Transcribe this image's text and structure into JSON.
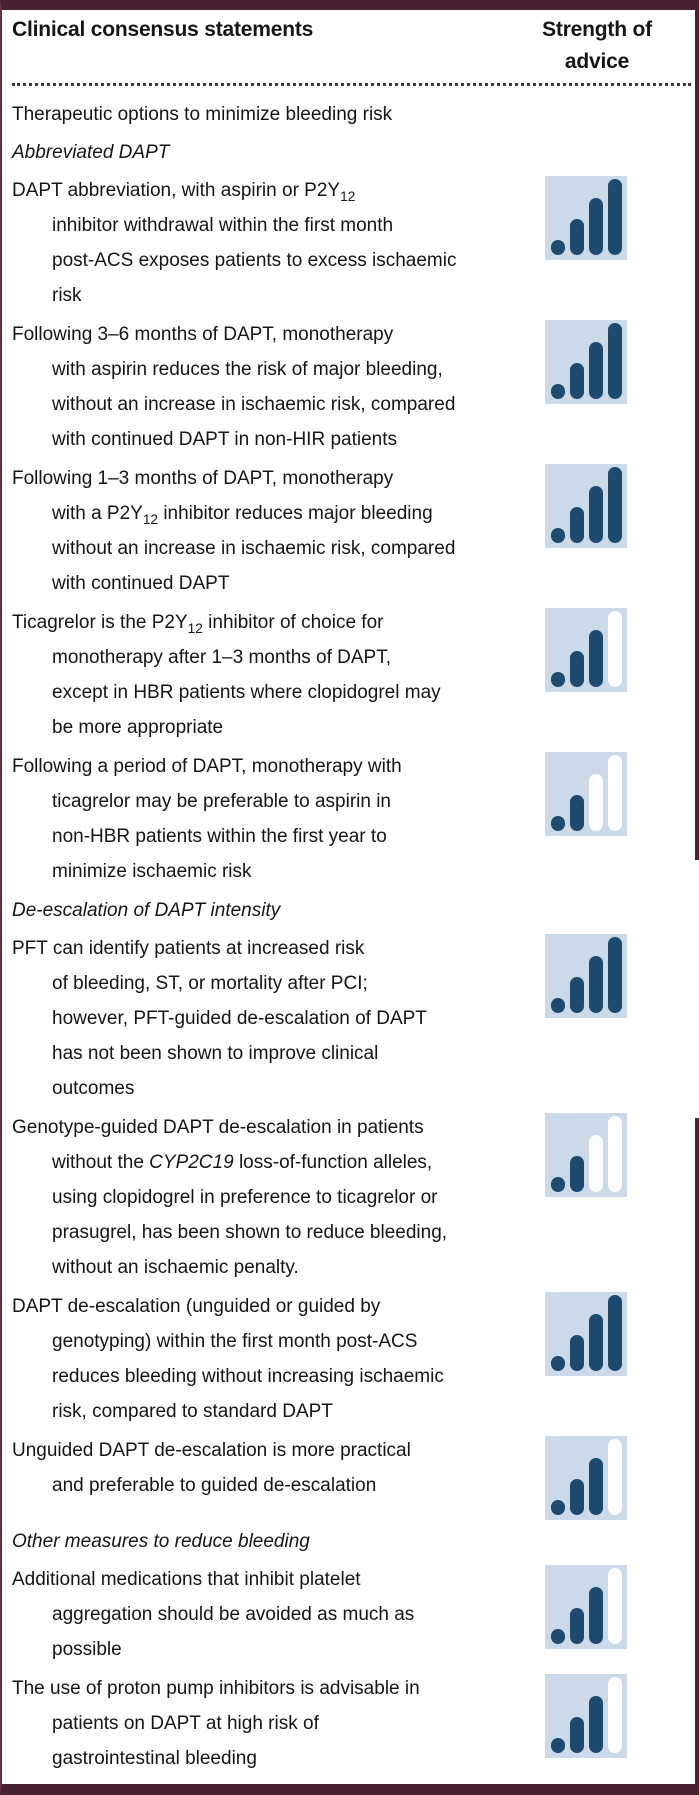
{
  "colors": {
    "border_maroon": "#4a2134",
    "border_maroon_light": "#6b3049",
    "icon_bg": "#ccd9e8",
    "bar_filled": "#1d4a6e",
    "bar_empty": "#fcfeff",
    "text": "#151515"
  },
  "strength_scale_max": 4,
  "header": {
    "col1": "Clinical consensus statements",
    "col2": "Strength of advice"
  },
  "items": [
    {
      "type": "plain",
      "text": "Therapeutic options to minimize bleeding risk"
    },
    {
      "type": "section",
      "text": "Abbreviated DAPT"
    },
    {
      "type": "statement",
      "strength": 4,
      "lines": [
        [
          {
            "t": "DAPT abbreviation, with aspirin or P2Y"
          },
          {
            "t": "12",
            "sub": true
          }
        ],
        [
          {
            "t": "inhibitor withdrawal within the first month"
          }
        ],
        [
          {
            "t": "post-ACS exposes patients to excess ischaemic"
          }
        ],
        [
          {
            "t": "risk"
          }
        ]
      ]
    },
    {
      "type": "statement",
      "strength": 4,
      "lines": [
        [
          {
            "t": "Following 3–6 months of DAPT, monotherapy"
          }
        ],
        [
          {
            "t": "with aspirin reduces the risk of major bleeding,"
          }
        ],
        [
          {
            "t": "without an increase in ischaemic risk, compared"
          }
        ],
        [
          {
            "t": "with continued DAPT in non-HIR patients"
          }
        ]
      ]
    },
    {
      "type": "statement",
      "strength": 4,
      "lines": [
        [
          {
            "t": "Following 1–3 months of DAPT, monotherapy"
          }
        ],
        [
          {
            "t": "with a P2Y"
          },
          {
            "t": "12",
            "sub": true
          },
          {
            "t": " inhibitor reduces major bleeding"
          }
        ],
        [
          {
            "t": "without an increase in ischaemic risk, compared"
          }
        ],
        [
          {
            "t": "with continued DAPT"
          }
        ]
      ]
    },
    {
      "type": "statement",
      "strength": 3,
      "lines": [
        [
          {
            "t": "Ticagrelor is the P2Y"
          },
          {
            "t": "12",
            "sub": true
          },
          {
            "t": " inhibitor of choice for"
          }
        ],
        [
          {
            "t": "monotherapy after 1–3 months of DAPT,"
          }
        ],
        [
          {
            "t": "except in HBR patients where clopidogrel may"
          }
        ],
        [
          {
            "t": "be more appropriate"
          }
        ]
      ]
    },
    {
      "type": "statement",
      "strength": 2,
      "lines": [
        [
          {
            "t": "Following a period of DAPT, monotherapy with"
          }
        ],
        [
          {
            "t": "ticagrelor may be preferable to aspirin in"
          }
        ],
        [
          {
            "t": "non-HBR patients within the first year to"
          }
        ],
        [
          {
            "t": "minimize ischaemic risk"
          }
        ]
      ]
    },
    {
      "type": "section",
      "text": "De-escalation of DAPT intensity"
    },
    {
      "type": "statement",
      "strength": 4,
      "lines": [
        [
          {
            "t": "PFT can identify patients at increased risk"
          }
        ],
        [
          {
            "t": "of bleeding, ST, or mortality after PCI;"
          }
        ],
        [
          {
            "t": "however, PFT-guided de-escalation of DAPT"
          }
        ],
        [
          {
            "t": "has not been shown to improve clinical"
          }
        ],
        [
          {
            "t": "outcomes"
          }
        ]
      ]
    },
    {
      "type": "statement",
      "strength": 2,
      "lines": [
        [
          {
            "t": "Genotype-guided DAPT de-escalation in patients"
          }
        ],
        [
          {
            "t": "without the "
          },
          {
            "t": "CYP2C19",
            "i": true
          },
          {
            "t": " loss-of-function alleles,"
          }
        ],
        [
          {
            "t": "using clopidogrel in preference to ticagrelor or"
          }
        ],
        [
          {
            "t": "prasugrel, has been shown to reduce bleeding,"
          }
        ],
        [
          {
            "t": "without an ischaemic penalty."
          }
        ]
      ]
    },
    {
      "type": "statement",
      "strength": 4,
      "lines": [
        [
          {
            "t": "DAPT de-escalation (unguided or guided by"
          }
        ],
        [
          {
            "t": "genotyping) within the first month post-ACS"
          }
        ],
        [
          {
            "t": "reduces bleeding without increasing ischaemic"
          }
        ],
        [
          {
            "t": "risk, compared to standard DAPT"
          }
        ]
      ]
    },
    {
      "type": "statement",
      "strength": 3,
      "lines": [
        [
          {
            "t": "Unguided DAPT de-escalation is more practical"
          }
        ],
        [
          {
            "t": "and preferable to guided de-escalation"
          }
        ]
      ]
    },
    {
      "type": "section",
      "text": "Other measures to reduce bleeding"
    },
    {
      "type": "statement",
      "strength": 3,
      "lines": [
        [
          {
            "t": "Additional medications that inhibit platelet"
          }
        ],
        [
          {
            "t": "aggregation should be avoided as much as"
          }
        ],
        [
          {
            "t": "possible"
          }
        ]
      ]
    },
    {
      "type": "statement",
      "strength": 3,
      "lines": [
        [
          {
            "t": "The use of proton pump inhibitors is advisable in"
          }
        ],
        [
          {
            "t": "patients on DAPT at high risk of"
          }
        ],
        [
          {
            "t": "gastrointestinal bleeding"
          }
        ]
      ]
    }
  ]
}
